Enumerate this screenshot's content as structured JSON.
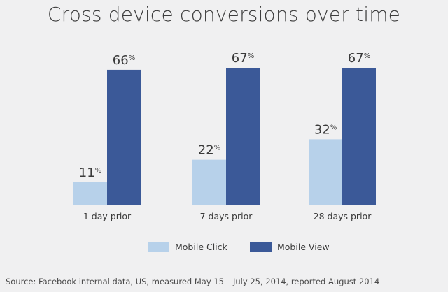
{
  "chart_data": {
    "type": "bar",
    "title": "Cross device conversions over time",
    "categories": [
      "1 day prior",
      "7 days prior",
      "28 days prior"
    ],
    "series": [
      {
        "name": "Mobile Click",
        "values": [
          11,
          22,
          32
        ],
        "color": "#b7d1ea"
      },
      {
        "name": "Mobile View",
        "values": [
          66,
          67,
          67
        ],
        "color": "#3b5998"
      }
    ],
    "value_suffix": "%",
    "ylim": [
      0,
      67
    ],
    "grid": false,
    "legend_position": "bottom",
    "xlabel": "",
    "ylabel": ""
  },
  "footer": {
    "source": "Source: Facebook internal data, US, measured May 15 – July 25, 2014, reported August 2014"
  },
  "colors": {
    "background": "#f0f0f1",
    "axis": "#555555"
  }
}
